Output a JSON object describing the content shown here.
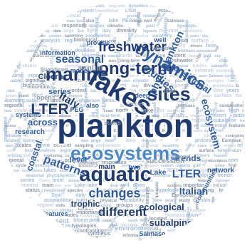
{
  "colors": {
    "background": "#ffffff",
    "navy": "#1f3a6e",
    "blue": "#2f5b9c",
    "lightblue": "#4d89c7",
    "gray": "#8a98ab",
    "paleblue": "#a3bcd8",
    "palegray": "#c6d0de"
  },
  "words": [
    {
      "text": "plankton",
      "c": "navy"
    },
    {
      "text": "ecosystems",
      "c": "lightblue"
    },
    {
      "text": "lakes",
      "c": "navy"
    },
    {
      "text": "aquatic",
      "c": "navy"
    },
    {
      "text": "marine",
      "c": "navy"
    },
    {
      "text": "sites",
      "c": "navy"
    },
    {
      "text": "long-term",
      "c": "navy"
    },
    {
      "text": "dynamics",
      "c": "blue"
    },
    {
      "text": "freshwater",
      "c": "navy"
    },
    {
      "text": "LTER",
      "c": "navy"
    },
    {
      "text": "Italy",
      "c": "navy"
    },
    {
      "text": "changes",
      "c": "blue"
    },
    {
      "text": "different",
      "c": "navy"
    },
    {
      "text": "patterns",
      "c": "blue"
    },
    {
      "text": "studies",
      "c": "blue"
    },
    {
      "text": "seasonal",
      "c": "blue"
    },
    {
      "text": "phytoplankton",
      "c": "blue"
    },
    {
      "text": "ecosystem",
      "c": "blue"
    },
    {
      "text": "transitional",
      "c": "blue"
    },
    {
      "text": "LTER",
      "c": "blue"
    },
    {
      "text": "Italian",
      "c": "blue"
    },
    {
      "text": "ecological",
      "c": "navy"
    },
    {
      "text": "trophic",
      "c": "navy"
    },
    {
      "text": "subalpine",
      "c": "navy"
    },
    {
      "text": "trends",
      "c": "blue"
    },
    {
      "text": "across",
      "c": "blue"
    },
    {
      "text": "coastal",
      "c": "blue"
    },
    {
      "text": "series",
      "c": "blue"
    },
    {
      "text": "Cloern",
      "c": "navy"
    },
    {
      "text": "level",
      "c": "blue"
    },
    {
      "text": "annual",
      "c": "gray"
    },
    {
      "text": "model",
      "c": "blue"
    },
    {
      "text": "information",
      "c": "blue"
    },
    {
      "text": "provide",
      "c": "blue"
    },
    {
      "text": "research",
      "c": "blue"
    },
    {
      "text": "network",
      "c": "blue"
    },
    {
      "text": "communities",
      "c": "blue"
    },
    {
      "text": "features",
      "c": "blue"
    },
    {
      "text": "represent",
      "c": "paleblue"
    },
    {
      "text": "succession",
      "c": "gray"
    },
    {
      "text": "environmental",
      "c": "paleblue"
    },
    {
      "text": "main",
      "c": "navy"
    },
    {
      "text": "two",
      "c": "blue"
    },
    {
      "text": "also",
      "c": "blue"
    },
    {
      "text": "Lake",
      "c": "blue"
    },
    {
      "text": "lake",
      "c": "gray"
    },
    {
      "text": "PEG",
      "c": "blue"
    },
    {
      "text": "deep",
      "c": "blue"
    },
    {
      "text": "well",
      "c": "blue"
    },
    {
      "text": "open",
      "c": "gray"
    },
    {
      "text": "Salmaso",
      "c": "blue"
    },
    {
      "text": "systems",
      "c": "blue"
    },
    {
      "text": "importance",
      "c": "gray"
    },
    {
      "text": "valuable",
      "c": "gray"
    },
    {
      "text": "significant",
      "c": "gray"
    },
    {
      "text": "mountain",
      "c": "gray"
    },
    {
      "text": "status",
      "c": "gray"
    },
    {
      "text": "responses",
      "c": "gray"
    },
    {
      "text": "species",
      "c": "gray"
    },
    {
      "text": "climatic",
      "c": "gray"
    },
    {
      "text": "national",
      "c": "gray"
    },
    {
      "text": "past",
      "c": "gray"
    },
    {
      "text": "synthesis",
      "c": "gray"
    },
    {
      "text": "typologies",
      "c": "gray"
    },
    {
      "text": "contrasting",
      "c": "gray"
    },
    {
      "text": "located",
      "c": "gray"
    },
    {
      "text": "biological",
      "c": "gray"
    },
    {
      "text": "functioning",
      "c": "gray"
    },
    {
      "text": "data",
      "c": "gray"
    },
    {
      "text": "large",
      "c": "gray"
    },
    {
      "text": "Sea",
      "c": "gray"
    },
    {
      "text": "light",
      "c": "gray"
    },
    {
      "text": "italy",
      "c": "gray"
    },
    {
      "text": "diversity",
      "c": "gray"
    },
    {
      "text": "lagoons",
      "c": "gray"
    },
    {
      "text": "relevant",
      "c": "gray"
    },
    {
      "text": "processes",
      "c": "gray"
    },
    {
      "text": "European",
      "c": "gray"
    },
    {
      "text": "global",
      "c": "gray"
    },
    {
      "text": "water",
      "c": "gray"
    },
    {
      "text": "scales",
      "c": "gray"
    },
    {
      "text": "recent",
      "c": "gray"
    },
    {
      "text": "context",
      "c": "gray"
    },
    {
      "text": "sampling",
      "c": "gray"
    },
    {
      "text": "zooplankton",
      "c": "gray"
    },
    {
      "text": "nutrient",
      "c": "gray"
    },
    {
      "text": "physical",
      "c": "gray"
    },
    {
      "text": "variability",
      "c": "gray"
    },
    {
      "text": "time",
      "c": "gray"
    },
    {
      "text": "years",
      "c": "gray"
    },
    {
      "text": "study",
      "c": "gray"
    },
    {
      "text": "domain",
      "c": "gray"
    },
    {
      "text": "inland",
      "c": "gray"
    },
    {
      "text": "food",
      "c": "gray"
    },
    {
      "text": "web",
      "c": "gray"
    },
    {
      "text": "local",
      "c": "gray"
    },
    {
      "text": "analysis",
      "c": "gray"
    },
    {
      "text": "regime",
      "c": "gray"
    },
    {
      "text": "shifts",
      "c": "gray"
    },
    {
      "text": "community",
      "c": "gray"
    },
    {
      "text": "structure",
      "c": "gray"
    },
    {
      "text": "groups",
      "c": "gray"
    },
    {
      "text": "Adriatic",
      "c": "gray"
    },
    {
      "text": "basin",
      "c": "gray"
    },
    {
      "text": "surface",
      "c": "gray"
    },
    {
      "text": "temperature",
      "c": "gray"
    },
    {
      "text": "warming",
      "c": "gray"
    },
    {
      "text": "stations",
      "c": "gray"
    },
    {
      "text": "monitoring",
      "c": "gray"
    },
    {
      "text": "comparison",
      "c": "gray"
    },
    {
      "text": "similar",
      "c": "gray"
    },
    {
      "text": "higher",
      "c": "gray"
    },
    {
      "text": "lower",
      "c": "gray"
    },
    {
      "text": "general",
      "c": "gray"
    },
    {
      "text": "observed",
      "c": "gray"
    },
    {
      "text": "factors",
      "c": "gray"
    },
    {
      "text": "drivers",
      "c": "gray"
    },
    {
      "text": "human",
      "c": "gray"
    },
    {
      "text": "pressures",
      "c": "gray"
    },
    {
      "text": "regional",
      "c": "gray"
    },
    {
      "text": "scale",
      "c": "gray"
    },
    {
      "text": "role",
      "c": "gray"
    },
    {
      "text": "key",
      "c": "gray"
    },
    {
      "text": "period",
      "c": "gray"
    },
    {
      "text": "decades",
      "c": "gray"
    },
    {
      "text": "reported",
      "c": "gray"
    },
    {
      "text": "shown",
      "c": "gray"
    },
    {
      "text": "increase",
      "c": "gray"
    },
    {
      "text": "decrease",
      "c": "gray"
    },
    {
      "text": "biomass",
      "c": "gray"
    },
    {
      "text": "abundance",
      "c": "gray"
    },
    {
      "text": "composition",
      "c": "gray"
    },
    {
      "text": "taxa",
      "c": "gray"
    },
    {
      "text": "cycle",
      "c": "gray"
    },
    {
      "text": "summer",
      "c": "gray"
    },
    {
      "text": "spring",
      "c": "gray"
    },
    {
      "text": "winter",
      "c": "gray"
    },
    {
      "text": "bloom",
      "c": "gray"
    },
    {
      "text": "peak",
      "c": "gray"
    },
    {
      "text": "coast",
      "c": "gray"
    },
    {
      "text": "north",
      "c": "gray"
    },
    {
      "text": "south",
      "c": "gray"
    },
    {
      "text": "western",
      "c": "gray"
    },
    {
      "text": "eastern",
      "c": "gray"
    },
    {
      "text": "basins",
      "c": "gray"
    },
    {
      "text": "gulf",
      "c": "gray"
    },
    {
      "text": "bay",
      "c": "gray"
    },
    {
      "text": "sites",
      "c": "gray"
    },
    {
      "text": "high",
      "c": "gray"
    },
    {
      "text": "low",
      "c": "gray"
    }
  ]
}
